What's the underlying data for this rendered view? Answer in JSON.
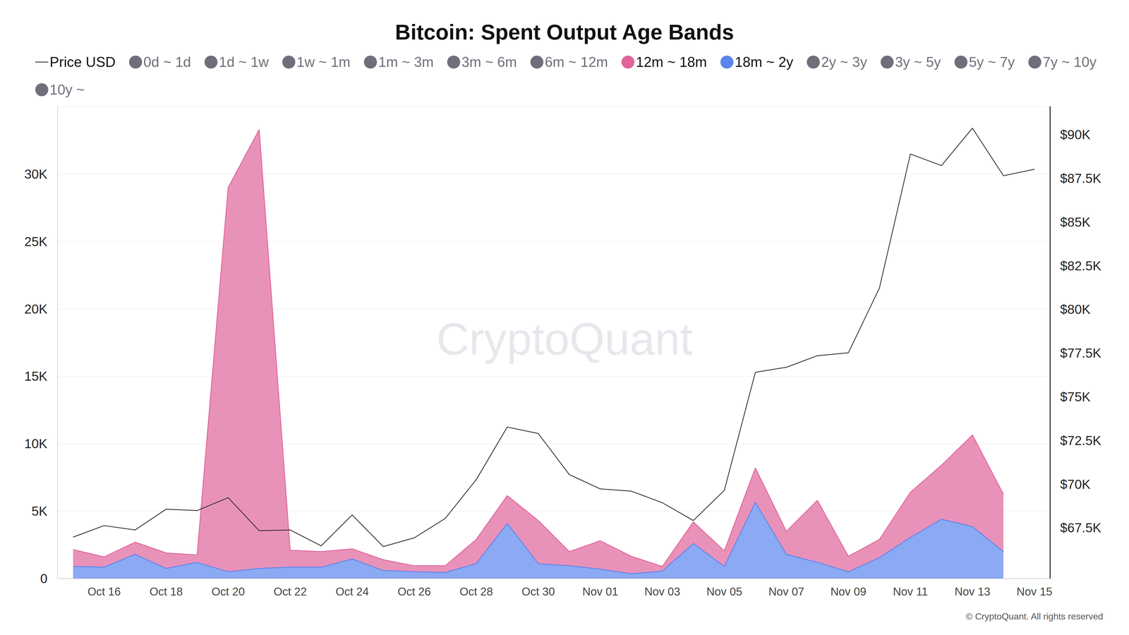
{
  "chart_data": {
    "type": "area",
    "title": "Bitcoin: Spent Output Age Bands",
    "categories": [
      null,
      "Oct 16",
      null,
      "Oct 18",
      null,
      "Oct 20",
      null,
      "Oct 22",
      null,
      "Oct 24",
      null,
      "Oct 26",
      null,
      "Oct 28",
      null,
      "Oct 30",
      null,
      "Nov 01",
      null,
      "Nov 03",
      null,
      "Nov 05",
      null,
      "Nov 07",
      null,
      "Nov 09",
      null,
      "Nov 11",
      null,
      "Nov 13",
      null,
      "Nov 15"
    ],
    "stacked": true,
    "grid": true,
    "legend": "top",
    "ylim": [
      0,
      35000
    ],
    "yticks": [
      0,
      {
        "value": 5000,
        "label": "5K"
      },
      {
        "value": 10000,
        "label": "10K"
      },
      {
        "value": 15000,
        "label": "15K"
      },
      {
        "value": 20000,
        "label": "20K"
      },
      {
        "value": 25000,
        "label": "25K"
      },
      {
        "value": 30000,
        "label": "30K"
      }
    ],
    "y2lim": [
      64600,
      91600
    ],
    "y2ticks": [
      {
        "value": 67500,
        "label": "$67.5K"
      },
      {
        "value": 70000,
        "label": "$70K"
      },
      {
        "value": 72500,
        "label": "$72.5K"
      },
      {
        "value": 75000,
        "label": "$75K"
      },
      {
        "value": 77500,
        "label": "$77.5K"
      },
      {
        "value": 80000,
        "label": "$80K"
      },
      {
        "value": 82500,
        "label": "$82.5K"
      },
      {
        "value": 85000,
        "label": "$85K"
      },
      {
        "value": 87500,
        "label": "$87.5K"
      },
      {
        "value": 90000,
        "label": "$90K"
      }
    ],
    "annotations": [
      {
        "text": "CryptoQuant"
      },
      {
        "text": "© CryptoQuant. All rights reserved"
      }
    ],
    "series": [
      {
        "name": "Price USD",
        "type": "line",
        "axis": "y2",
        "color": "#1f1f1f",
        "values": [
          66970,
          67630,
          67380,
          68570,
          68490,
          69230,
          67340,
          67380,
          66470,
          68240,
          66430,
          66930,
          68040,
          70260,
          73270,
          72900,
          70550,
          69730,
          69600,
          68940,
          67920,
          69650,
          76400,
          76690,
          77350,
          77520,
          81220,
          88890,
          88230,
          90370,
          87650,
          88020
        ]
      },
      {
        "name": "0d ~ 1d",
        "type": "area",
        "color": "#6e6f7a",
        "values": [
          null,
          null,
          null,
          null,
          null,
          null,
          null,
          null,
          null,
          null,
          null,
          null,
          null,
          null,
          null,
          null,
          null,
          null,
          null,
          null,
          null,
          null,
          null,
          null,
          null,
          null,
          null,
          null,
          null,
          null,
          null,
          null
        ]
      },
      {
        "name": "1d ~ 1w",
        "type": "area",
        "color": "#6e6f7a",
        "values": [
          null,
          null,
          null,
          null,
          null,
          null,
          null,
          null,
          null,
          null,
          null,
          null,
          null,
          null,
          null,
          null,
          null,
          null,
          null,
          null,
          null,
          null,
          null,
          null,
          null,
          null,
          null,
          null,
          null,
          null,
          null,
          null
        ]
      },
      {
        "name": "1w ~ 1m",
        "type": "area",
        "color": "#6e6f7a",
        "values": [
          null,
          null,
          null,
          null,
          null,
          null,
          null,
          null,
          null,
          null,
          null,
          null,
          null,
          null,
          null,
          null,
          null,
          null,
          null,
          null,
          null,
          null,
          null,
          null,
          null,
          null,
          null,
          null,
          null,
          null,
          null,
          null
        ]
      },
      {
        "name": "1m ~ 3m",
        "type": "area",
        "color": "#6e6f7a",
        "values": [
          null,
          null,
          null,
          null,
          null,
          null,
          null,
          null,
          null,
          null,
          null,
          null,
          null,
          null,
          null,
          null,
          null,
          null,
          null,
          null,
          null,
          null,
          null,
          null,
          null,
          null,
          null,
          null,
          null,
          null,
          null,
          null
        ]
      },
      {
        "name": "3m ~ 6m",
        "type": "area",
        "color": "#6e6f7a",
        "values": [
          null,
          null,
          null,
          null,
          null,
          null,
          null,
          null,
          null,
          null,
          null,
          null,
          null,
          null,
          null,
          null,
          null,
          null,
          null,
          null,
          null,
          null,
          null,
          null,
          null,
          null,
          null,
          null,
          null,
          null,
          null,
          null
        ]
      },
      {
        "name": "6m ~ 12m",
        "type": "area",
        "color": "#6e6f7a",
        "values": [
          null,
          null,
          null,
          null,
          null,
          null,
          null,
          null,
          null,
          null,
          null,
          null,
          null,
          null,
          null,
          null,
          null,
          null,
          null,
          null,
          null,
          null,
          null,
          null,
          null,
          null,
          null,
          null,
          null,
          null,
          null,
          null
        ]
      },
      {
        "name": "12m ~ 18m",
        "type": "area",
        "color": "#e0649b",
        "values": [
          1250,
          750,
          900,
          1150,
          550,
          28500,
          32550,
          1250,
          1150,
          750,
          800,
          450,
          500,
          1800,
          2050,
          3200,
          1050,
          2100,
          1300,
          350,
          1600,
          1150,
          2550,
          1700,
          4600,
          1150,
          1350,
          3350,
          4000,
          6800,
          4250,
          null
        ]
      },
      {
        "name": "18m ~ 2y",
        "type": "area",
        "color": "#5b84ee",
        "values": [
          900,
          850,
          1800,
          750,
          1200,
          500,
          750,
          850,
          850,
          1450,
          600,
          500,
          450,
          1100,
          4100,
          1100,
          950,
          700,
          350,
          550,
          2600,
          900,
          5650,
          1800,
          1200,
          500,
          1550,
          3050,
          4400,
          3850,
          2000,
          null
        ]
      },
      {
        "name": "2y ~ 3y",
        "type": "area",
        "color": "#6e6f7a",
        "values": [
          null,
          null,
          null,
          null,
          null,
          null,
          null,
          null,
          null,
          null,
          null,
          null,
          null,
          null,
          null,
          null,
          null,
          null,
          null,
          null,
          null,
          null,
          null,
          null,
          null,
          null,
          null,
          null,
          null,
          null,
          null,
          null
        ]
      },
      {
        "name": "3y ~ 5y",
        "type": "area",
        "color": "#6e6f7a",
        "values": [
          null,
          null,
          null,
          null,
          null,
          null,
          null,
          null,
          null,
          null,
          null,
          null,
          null,
          null,
          null,
          null,
          null,
          null,
          null,
          null,
          null,
          null,
          null,
          null,
          null,
          null,
          null,
          null,
          null,
          null,
          null,
          null
        ]
      },
      {
        "name": "5y ~ 7y",
        "type": "area",
        "color": "#6e6f7a",
        "values": [
          null,
          null,
          null,
          null,
          null,
          null,
          null,
          null,
          null,
          null,
          null,
          null,
          null,
          null,
          null,
          null,
          null,
          null,
          null,
          null,
          null,
          null,
          null,
          null,
          null,
          null,
          null,
          null,
          null,
          null,
          null,
          null
        ]
      },
      {
        "name": "7y ~ 10y",
        "type": "area",
        "color": "#6e6f7a",
        "values": [
          null,
          null,
          null,
          null,
          null,
          null,
          null,
          null,
          null,
          null,
          null,
          null,
          null,
          null,
          null,
          null,
          null,
          null,
          null,
          null,
          null,
          null,
          null,
          null,
          null,
          null,
          null,
          null,
          null,
          null,
          null,
          null
        ]
      },
      {
        "name": "10y ~",
        "type": "area",
        "color": "#6e6f7a",
        "values": [
          null,
          null,
          null,
          null,
          null,
          null,
          null,
          null,
          null,
          null,
          null,
          null,
          null,
          null,
          null,
          null,
          null,
          null,
          null,
          null,
          null,
          null,
          null,
          null,
          null,
          null,
          null,
          null,
          null,
          null,
          null,
          null
        ]
      }
    ]
  }
}
